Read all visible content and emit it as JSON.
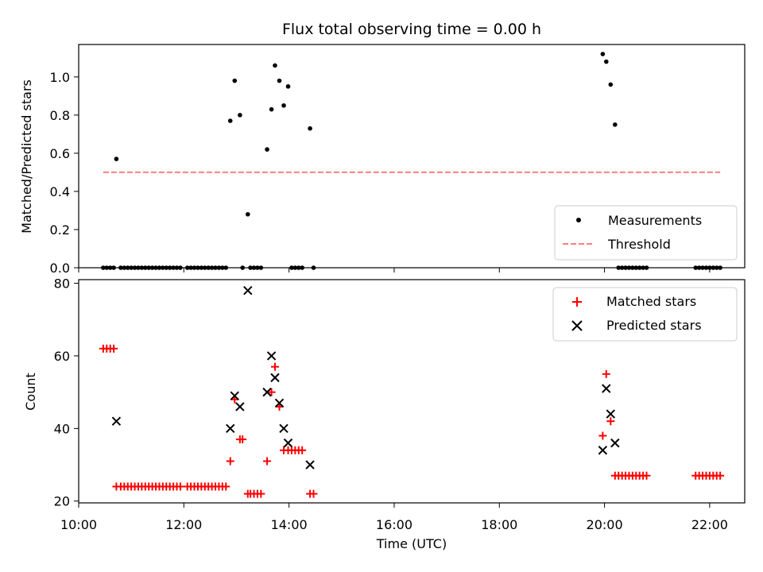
{
  "chart_data": [
    {
      "type": "scatter",
      "title": "Flux total observing time = 0.00 h",
      "xlabel": "",
      "ylabel": "Matched/Predicted stars",
      "xlim": [
        "10:00",
        "22:40"
      ],
      "ylim": [
        0,
        1.17
      ],
      "yticks": [
        "0.0",
        "0.2",
        "0.4",
        "0.6",
        "0.8",
        "1.0"
      ],
      "xticks_shown": false,
      "legend_location": "lower right",
      "series": [
        {
          "name": "Measurements",
          "marker": "dot",
          "color": "#000000",
          "points": [
            [
              "10:28",
              0
            ],
            [
              "10:32",
              0
            ],
            [
              "10:36",
              0
            ],
            [
              "10:40",
              0
            ],
            [
              "10:43",
              0.57
            ],
            [
              "10:48",
              0
            ],
            [
              "10:52",
              0
            ],
            [
              "10:56",
              0
            ],
            [
              "11:00",
              0
            ],
            [
              "11:04",
              0
            ],
            [
              "11:08",
              0
            ],
            [
              "11:12",
              0
            ],
            [
              "11:16",
              0
            ],
            [
              "11:20",
              0
            ],
            [
              "11:24",
              0
            ],
            [
              "11:28",
              0
            ],
            [
              "11:32",
              0
            ],
            [
              "11:36",
              0
            ],
            [
              "11:40",
              0
            ],
            [
              "11:44",
              0
            ],
            [
              "11:48",
              0
            ],
            [
              "11:52",
              0
            ],
            [
              "11:56",
              0
            ],
            [
              "12:04",
              0
            ],
            [
              "12:08",
              0
            ],
            [
              "12:12",
              0
            ],
            [
              "12:16",
              0
            ],
            [
              "12:20",
              0
            ],
            [
              "12:24",
              0
            ],
            [
              "12:28",
              0
            ],
            [
              "12:32",
              0
            ],
            [
              "12:36",
              0
            ],
            [
              "12:40",
              0
            ],
            [
              "12:44",
              0
            ],
            [
              "12:48",
              0
            ],
            [
              "12:53",
              0.77
            ],
            [
              "12:58",
              0.98
            ],
            [
              "13:04",
              0.8
            ],
            [
              "13:07",
              0
            ],
            [
              "13:13",
              0.28
            ],
            [
              "13:16",
              0
            ],
            [
              "13:20",
              0
            ],
            [
              "13:24",
              0
            ],
            [
              "13:28",
              0
            ],
            [
              "13:35",
              0.62
            ],
            [
              "13:40",
              0.83
            ],
            [
              "13:44",
              1.06
            ],
            [
              "13:49",
              0.98
            ],
            [
              "13:54",
              0.85
            ],
            [
              "13:59",
              0.95
            ],
            [
              "14:03",
              0
            ],
            [
              "14:07",
              0
            ],
            [
              "14:11",
              0
            ],
            [
              "14:15",
              0
            ],
            [
              "14:24",
              0.73
            ],
            [
              "14:28",
              0
            ],
            [
              "19:58",
              1.12
            ],
            [
              "20:02",
              1.08
            ],
            [
              "20:07",
              0.96
            ],
            [
              "20:12",
              0.75
            ],
            [
              "20:16",
              0
            ],
            [
              "20:20",
              0
            ],
            [
              "20:24",
              0
            ],
            [
              "20:28",
              0
            ],
            [
              "20:32",
              0
            ],
            [
              "20:36",
              0
            ],
            [
              "20:40",
              0
            ],
            [
              "20:44",
              0
            ],
            [
              "20:48",
              0
            ],
            [
              "21:44",
              0
            ],
            [
              "21:48",
              0
            ],
            [
              "21:52",
              0
            ],
            [
              "21:56",
              0
            ],
            [
              "22:00",
              0
            ],
            [
              "22:04",
              0
            ],
            [
              "22:08",
              0
            ],
            [
              "22:12",
              0
            ]
          ]
        },
        {
          "name": "Threshold",
          "type": "line",
          "style": "dashed",
          "color": "#ff7f7f",
          "points": [
            [
              "10:28",
              0.5
            ],
            [
              "22:12",
              0.5
            ]
          ]
        }
      ]
    },
    {
      "type": "scatter",
      "title": "",
      "xlabel": "Time (UTC)",
      "ylabel": "Count",
      "xlim": [
        "10:00",
        "22:40"
      ],
      "ylim": [
        19.5,
        81
      ],
      "yticks": [
        "20",
        "40",
        "60",
        "80"
      ],
      "xticks": [
        "10:00",
        "12:00",
        "14:00",
        "16:00",
        "18:00",
        "20:00",
        "22:00"
      ],
      "legend_location": "upper right",
      "series": [
        {
          "name": "Matched stars",
          "marker": "plus",
          "color": "#ff0000",
          "points": [
            [
              "10:28",
              62
            ],
            [
              "10:32",
              62
            ],
            [
              "10:36",
              62
            ],
            [
              "10:40",
              62
            ],
            [
              "10:43",
              24
            ],
            [
              "10:48",
              24
            ],
            [
              "10:52",
              24
            ],
            [
              "10:56",
              24
            ],
            [
              "11:00",
              24
            ],
            [
              "11:04",
              24
            ],
            [
              "11:08",
              24
            ],
            [
              "11:12",
              24
            ],
            [
              "11:16",
              24
            ],
            [
              "11:20",
              24
            ],
            [
              "11:24",
              24
            ],
            [
              "11:28",
              24
            ],
            [
              "11:32",
              24
            ],
            [
              "11:36",
              24
            ],
            [
              "11:40",
              24
            ],
            [
              "11:44",
              24
            ],
            [
              "11:48",
              24
            ],
            [
              "11:52",
              24
            ],
            [
              "11:56",
              24
            ],
            [
              "12:04",
              24
            ],
            [
              "12:08",
              24
            ],
            [
              "12:12",
              24
            ],
            [
              "12:16",
              24
            ],
            [
              "12:20",
              24
            ],
            [
              "12:24",
              24
            ],
            [
              "12:28",
              24
            ],
            [
              "12:32",
              24
            ],
            [
              "12:36",
              24
            ],
            [
              "12:40",
              24
            ],
            [
              "12:44",
              24
            ],
            [
              "12:48",
              24
            ],
            [
              "12:53",
              31
            ],
            [
              "12:58",
              48
            ],
            [
              "13:04",
              37
            ],
            [
              "13:07",
              37
            ],
            [
              "13:13",
              22
            ],
            [
              "13:16",
              22
            ],
            [
              "13:20",
              22
            ],
            [
              "13:24",
              22
            ],
            [
              "13:28",
              22
            ],
            [
              "13:35",
              31
            ],
            [
              "13:40",
              50
            ],
            [
              "13:44",
              57
            ],
            [
              "13:49",
              46
            ],
            [
              "13:54",
              34
            ],
            [
              "13:59",
              34
            ],
            [
              "14:03",
              34
            ],
            [
              "14:07",
              34
            ],
            [
              "14:11",
              34
            ],
            [
              "14:15",
              34
            ],
            [
              "14:24",
              22
            ],
            [
              "14:28",
              22
            ],
            [
              "19:58",
              38
            ],
            [
              "20:02",
              55
            ],
            [
              "20:07",
              42
            ],
            [
              "20:12",
              27
            ],
            [
              "20:16",
              27
            ],
            [
              "20:20",
              27
            ],
            [
              "20:24",
              27
            ],
            [
              "20:28",
              27
            ],
            [
              "20:32",
              27
            ],
            [
              "20:36",
              27
            ],
            [
              "20:40",
              27
            ],
            [
              "20:44",
              27
            ],
            [
              "20:48",
              27
            ],
            [
              "21:44",
              27
            ],
            [
              "21:48",
              27
            ],
            [
              "21:52",
              27
            ],
            [
              "21:56",
              27
            ],
            [
              "22:00",
              27
            ],
            [
              "22:04",
              27
            ],
            [
              "22:08",
              27
            ],
            [
              "22:12",
              27
            ]
          ]
        },
        {
          "name": "Predicted stars",
          "marker": "x",
          "color": "#000000",
          "points": [
            [
              "10:43",
              42
            ],
            [
              "12:53",
              40
            ],
            [
              "12:58",
              49
            ],
            [
              "13:04",
              46
            ],
            [
              "13:13",
              78
            ],
            [
              "13:35",
              50
            ],
            [
              "13:40",
              60
            ],
            [
              "13:44",
              54
            ],
            [
              "13:49",
              47
            ],
            [
              "13:54",
              40
            ],
            [
              "13:59",
              36
            ],
            [
              "14:24",
              30
            ],
            [
              "19:58",
              34
            ],
            [
              "20:02",
              51
            ],
            [
              "20:07",
              44
            ],
            [
              "20:12",
              36
            ]
          ]
        }
      ]
    }
  ]
}
